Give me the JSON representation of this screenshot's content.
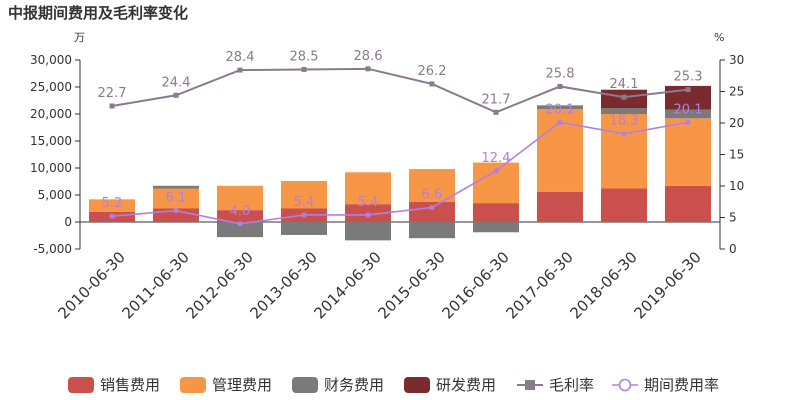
{
  "chart_data": {
    "type": "bar+line",
    "title": "中报期间费用及毛利率变化",
    "left_unit": "万",
    "right_unit": "%",
    "categories": [
      "2010-06-30",
      "2011-06-30",
      "2012-06-30",
      "2013-06-30",
      "2014-06-30",
      "2015-06-30",
      "2016-06-30",
      "2017-06-30",
      "2018-06-30",
      "2019-06-30"
    ],
    "left_axis": {
      "min": -5000,
      "max": 30000,
      "ticks": [
        -5000,
        0,
        5000,
        10000,
        15000,
        20000,
        25000,
        30000
      ],
      "tick_labels": [
        "-5,000",
        "0",
        "5,000",
        "10,000",
        "15,000",
        "20,000",
        "25,000",
        "30,000"
      ]
    },
    "right_axis": {
      "min": 0,
      "max": 30,
      "ticks": [
        0,
        5,
        10,
        15,
        20,
        25,
        30
      ],
      "tick_labels": [
        "0",
        "5",
        "10",
        "15",
        "20",
        "25",
        "30"
      ]
    },
    "bar_series": [
      {
        "name": "销售费用",
        "color": "#c9504c",
        "values": [
          1900,
          2500,
          2200,
          2500,
          3300,
          3700,
          3500,
          5600,
          6200,
          6700
        ]
      },
      {
        "name": "管理费用",
        "color": "#f79646",
        "values": [
          2300,
          3700,
          4500,
          5100,
          5900,
          6100,
          7500,
          15300,
          13800,
          12500
        ]
      },
      {
        "name": "财务费用",
        "color": "#7a7a7a",
        "values": [
          0,
          500,
          -2800,
          -2400,
          -3400,
          -3000,
          -1900,
          700,
          1100,
          1600
        ]
      },
      {
        "name": "研发费用",
        "color": "#7b2b2e",
        "values": [
          0,
          0,
          0,
          0,
          0,
          0,
          0,
          0,
          3400,
          4400
        ]
      }
    ],
    "line_series": [
      {
        "name": "毛利率",
        "color": "#8a7a8c",
        "values": [
          22.7,
          24.4,
          28.4,
          28.5,
          28.6,
          26.2,
          21.7,
          25.8,
          24.1,
          25.3
        ],
        "labels": [
          "22.7",
          "24.4",
          "28.4",
          "28.5",
          "28.6",
          "26.2",
          "21.7",
          "25.8",
          "24.1",
          "25.3"
        ]
      },
      {
        "name": "期间费用率",
        "color": "#b27fe0",
        "values": [
          5.2,
          6.1,
          4.0,
          5.4,
          5.4,
          6.6,
          12.4,
          20.1,
          18.3,
          20.1
        ],
        "labels": [
          "5.2",
          "6.1",
          "4.0",
          "5.4",
          "5.4",
          "6.6",
          "12.4",
          "20.1",
          "18.3",
          "20.1"
        ]
      }
    ],
    "legend": {
      "position": "bottom",
      "items": [
        {
          "name": "销售费用",
          "marker": "bar",
          "color": "#c9504c"
        },
        {
          "name": "管理费用",
          "marker": "bar",
          "color": "#f79646"
        },
        {
          "name": "财务费用",
          "marker": "bar",
          "color": "#7a7a7a"
        },
        {
          "name": "研发费用",
          "marker": "bar",
          "color": "#7b2b2e"
        },
        {
          "name": "毛利率",
          "marker": "line-square",
          "color": "#8a7a8c"
        },
        {
          "name": "期间费用率",
          "marker": "line-circle",
          "color": "#b27fe0"
        }
      ]
    },
    "grid": false
  }
}
